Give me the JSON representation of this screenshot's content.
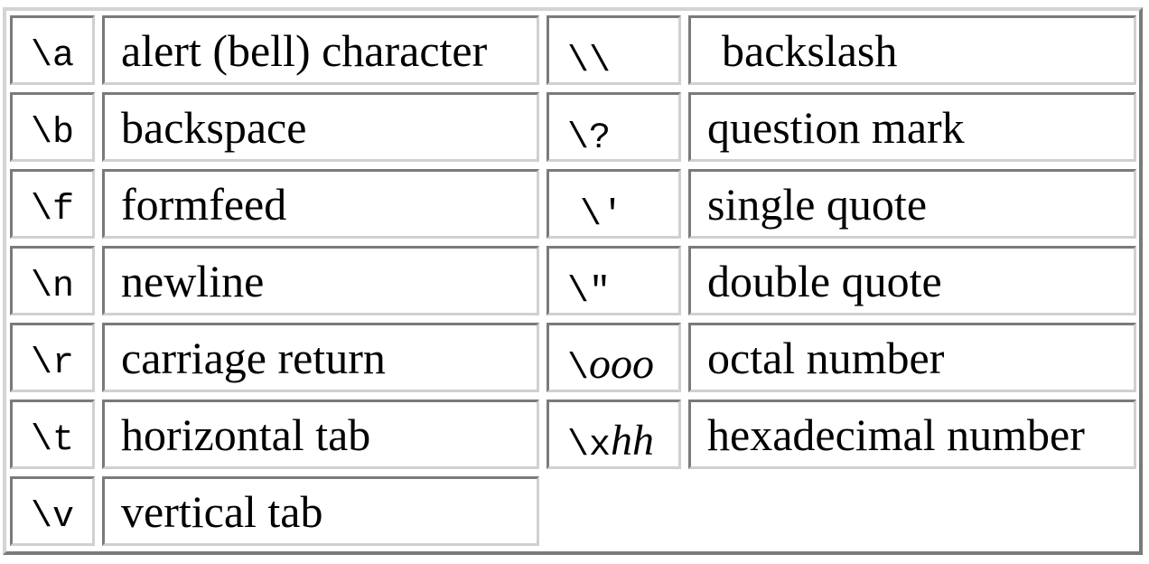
{
  "rows": [
    {
      "left": {
        "code": "\\a",
        "description": "alert (bell) character"
      },
      "right": {
        "code_mono": "\\\\",
        "code_italic": "",
        "description": "backslash"
      }
    },
    {
      "left": {
        "code": "\\b",
        "description": "backspace"
      },
      "right": {
        "code_mono": "\\?",
        "code_italic": "",
        "description": "question mark"
      }
    },
    {
      "left": {
        "code": "\\f",
        "description": "formfeed"
      },
      "right": {
        "code_mono": "\\'",
        "code_italic": "",
        "description": "single quote"
      }
    },
    {
      "left": {
        "code": "\\n",
        "description": "newline"
      },
      "right": {
        "code_mono": "\\\"",
        "code_italic": "",
        "description": "double quote"
      }
    },
    {
      "left": {
        "code": "\\r",
        "description": "carriage return"
      },
      "right": {
        "code_mono": "\\",
        "code_italic": "ooo",
        "description": "octal number"
      }
    },
    {
      "left": {
        "code": "\\t",
        "description": "horizontal tab"
      },
      "right": {
        "code_mono": "\\x",
        "code_italic": "hh",
        "description": "hexadecimal number"
      }
    },
    {
      "left": {
        "code": "\\v",
        "description": "vertical tab"
      },
      "right": null
    }
  ],
  "colors": {
    "border_light": "#d0d0d0",
    "border_dark": "#7a7a7a",
    "text": "#000000",
    "background": "#ffffff"
  }
}
